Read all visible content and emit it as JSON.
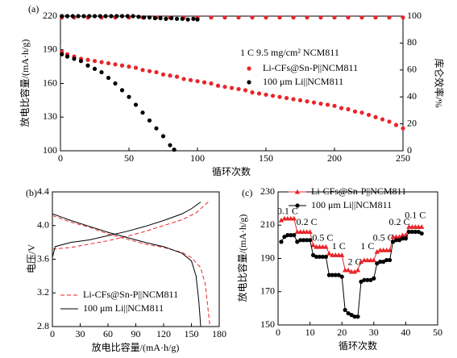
{
  "chart_data": [
    {
      "type": "scatter",
      "panel_label": "(a)",
      "annotation": "1 C  9.5 mg/cm² NCM811",
      "x_label": "循环次数",
      "y_label": "放电比容量/(mA·h/g)",
      "y2_label": "库仑效率/%",
      "xlim": [
        0,
        250
      ],
      "xticks": [
        0,
        50,
        100,
        150,
        200,
        250
      ],
      "ylim": [
        100,
        220
      ],
      "yticks": [
        100,
        130,
        160,
        190,
        220
      ],
      "y2lim": [
        0,
        100
      ],
      "y2ticks": [
        0,
        20,
        40,
        60,
        80,
        100
      ],
      "series": [
        {
          "name": "Li-CFs@Sn-P||NCM811",
          "color": "#e8262a",
          "marker": "circle",
          "x": [
            1,
            5,
            10,
            15,
            20,
            25,
            30,
            35,
            40,
            45,
            50,
            55,
            60,
            65,
            70,
            75,
            80,
            85,
            90,
            95,
            100,
            105,
            110,
            115,
            120,
            125,
            130,
            135,
            140,
            145,
            150,
            155,
            160,
            165,
            170,
            175,
            180,
            185,
            190,
            195,
            200,
            205,
            210,
            215,
            220,
            225,
            230,
            235,
            240,
            245,
            250
          ],
          "values": [
            188,
            186,
            184,
            182,
            181,
            180,
            179,
            178,
            177,
            176,
            175,
            174,
            172,
            171,
            170,
            168,
            167,
            166,
            164,
            163,
            162,
            161,
            160,
            158,
            157,
            156,
            155,
            154,
            152,
            151,
            150,
            149,
            148,
            147,
            146,
            145,
            144,
            143,
            142,
            141,
            140,
            138,
            137,
            135,
            134,
            132,
            130,
            128,
            126,
            123,
            120
          ]
        },
        {
          "name": "100 μm Li||NCM811",
          "color": "#000000",
          "marker": "circle",
          "x": [
            1,
            5,
            10,
            15,
            20,
            25,
            30,
            35,
            40,
            45,
            50,
            55,
            60,
            65,
            70,
            75,
            80,
            83
          ],
          "values": [
            186,
            184,
            182,
            180,
            176,
            173,
            170,
            165,
            160,
            154,
            148,
            141,
            134,
            127,
            120,
            113,
            105,
            101
          ]
        },
        {
          "color": "#e8262a",
          "axis": "y2",
          "marker": "circle",
          "x": [
            1,
            10,
            20,
            30,
            40,
            50,
            60,
            70,
            80,
            90,
            100,
            110,
            120,
            130,
            140,
            150,
            160,
            170,
            180,
            190,
            200,
            210,
            220,
            230,
            240,
            250
          ],
          "values": [
            99,
            99,
            99,
            99,
            99,
            99,
            99,
            99,
            99,
            99,
            99,
            99,
            99,
            99,
            99,
            99,
            99,
            99,
            99,
            99,
            99,
            99,
            99,
            99,
            99,
            99
          ]
        },
        {
          "color": "#000000",
          "axis": "y2",
          "marker": "circle",
          "x": [
            1,
            5,
            9,
            13,
            17,
            21,
            25,
            29,
            33,
            37,
            41,
            45,
            49,
            53,
            57,
            61,
            65,
            69,
            73,
            77,
            81,
            85,
            89,
            93,
            97,
            100
          ],
          "values": [
            100,
            100,
            100,
            100,
            100,
            100,
            100,
            100,
            100,
            100,
            100,
            100,
            100,
            100,
            99.5,
            99,
            99,
            98.5,
            98.5,
            98,
            98.5,
            98,
            98,
            97.5,
            98,
            97.5
          ]
        }
      ]
    },
    {
      "type": "line",
      "panel_label": "(b)",
      "x_label": "放电比容量/(mA·h/g)",
      "y_label": "电压/V",
      "xlim": [
        0,
        180
      ],
      "xticks": [
        0,
        30,
        60,
        90,
        120,
        150,
        180
      ],
      "ylim": [
        2.8,
        4.4
      ],
      "yticks": [
        2.8,
        3.2,
        3.6,
        {
          "value": 4,
          "label": "4.0"
        },
        4.4
      ],
      "series": [
        {
          "name": "Li-CFs@Sn-P||NCM811",
          "color": "#e8262a",
          "dash": true,
          "x": [
            0,
            20,
            40,
            60,
            80,
            100,
            120,
            140,
            155,
            165,
            170,
            null,
            0,
            10,
            20,
            40,
            60,
            80,
            100,
            120,
            140,
            150,
            160,
            165,
            168,
            170
          ],
          "values": [
            3.72,
            3.74,
            3.78,
            3.82,
            3.87,
            3.93,
            4.0,
            4.07,
            4.15,
            4.25,
            4.3,
            null,
            4.12,
            4.08,
            4.04,
            3.98,
            3.9,
            3.84,
            3.78,
            3.74,
            3.68,
            3.62,
            3.5,
            3.3,
            3.0,
            2.8
          ]
        },
        {
          "name": "100 μm Li||NCM811",
          "color": "#000000",
          "x": [
            0,
            3,
            20,
            40,
            60,
            80,
            100,
            120,
            140,
            150,
            160,
            null,
            0,
            10,
            20,
            40,
            60,
            80,
            100,
            120,
            140,
            150,
            155,
            158,
            160
          ],
          "values": [
            3.62,
            3.75,
            3.8,
            3.83,
            3.88,
            3.93,
            3.99,
            4.06,
            4.14,
            4.2,
            4.28,
            null,
            4.14,
            4.1,
            4.06,
            3.99,
            3.92,
            3.86,
            3.8,
            3.75,
            3.67,
            3.58,
            3.4,
            3.1,
            2.8
          ]
        }
      ]
    },
    {
      "type": "line",
      "panel_label": "(c)",
      "x_label": "循环次数",
      "y_label": "放电比容量/(mA·h/g)",
      "xlim": [
        0,
        50
      ],
      "xticks": [
        0,
        10,
        20,
        30,
        40,
        50
      ],
      "ylim": [
        150,
        230
      ],
      "yticks": [
        150,
        170,
        190,
        210,
        230
      ],
      "rate_labels": [
        "0.1 C",
        "0.2 C",
        "0.5 C",
        "1 C",
        "2 C",
        "1 C",
        "0.5 C",
        "0.2 C",
        "0.1 C"
      ],
      "x": [
        1,
        2,
        3,
        4,
        5,
        6,
        7,
        8,
        9,
        10,
        11,
        12,
        13,
        14,
        15,
        16,
        17,
        18,
        19,
        20,
        21,
        22,
        23,
        24,
        25,
        26,
        27,
        28,
        29,
        30,
        31,
        32,
        33,
        34,
        35,
        36,
        37,
        38,
        39,
        40,
        41,
        42,
        43,
        44,
        45
      ],
      "series": [
        {
          "name": "Li-CFs@Sn-P||NCM811",
          "color": "#e8262a",
          "marker": "triangle",
          "values": [
            213,
            214,
            214,
            214,
            214,
            206,
            206,
            206,
            206,
            206,
            198,
            197,
            197,
            197,
            197,
            193,
            192,
            192,
            192,
            192,
            183,
            183,
            182,
            182,
            183,
            188,
            189,
            189,
            189,
            189,
            194,
            195,
            195,
            195,
            195,
            203,
            203,
            203,
            204,
            204,
            209,
            209,
            209,
            209,
            209
          ]
        },
        {
          "name": "100 μm Li||NCM811",
          "color": "#000000",
          "marker": "circle",
          "values": [
            200,
            203,
            204,
            204,
            204,
            200,
            201,
            201,
            201,
            201,
            192,
            191,
            191,
            191,
            191,
            180,
            180,
            180,
            180,
            179,
            159,
            157,
            156,
            155,
            155,
            176,
            177,
            177,
            177,
            178,
            187,
            188,
            188,
            189,
            189,
            200,
            201,
            201,
            202,
            202,
            206,
            206,
            206,
            206,
            205
          ]
        }
      ]
    }
  ]
}
